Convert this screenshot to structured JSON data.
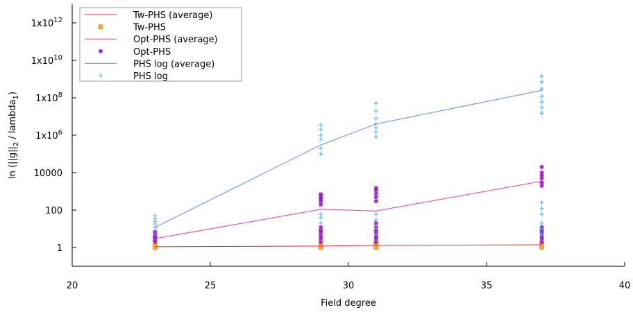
{
  "chart_data": {
    "type": "scatter",
    "xlabel": "Field degree",
    "ylabel": "ln (||g||",
    "ylabel_sub1": "2",
    "ylabel_mid": " / lambda",
    "ylabel_sub2": "1",
    "ylabel_end": ")",
    "xlim": [
      20,
      40
    ],
    "y_scale": "log",
    "ylim": [
      0.1,
      10000000000000
    ],
    "x_ticks": [
      20,
      25,
      30,
      35,
      40
    ],
    "y_ticks": [
      {
        "value": 1,
        "mantissa": "1",
        "exp": ""
      },
      {
        "value": 100,
        "mantissa": "100",
        "exp": ""
      },
      {
        "value": 10000,
        "mantissa": "10000",
        "exp": ""
      },
      {
        "value": 1000000,
        "mantissa": "1x10",
        "exp": "6"
      },
      {
        "value": 100000000,
        "mantissa": "1x10",
        "exp": "8"
      },
      {
        "value": 10000000000,
        "mantissa": "1x10",
        "exp": "10"
      },
      {
        "value": 1000000000000,
        "mantissa": "1x10",
        "exp": "12"
      }
    ],
    "grid": false,
    "legend_position": "top-left",
    "colors": {
      "tw": "#e8272b",
      "tw_points": "#f7a23e",
      "opt": "#ea3aa5",
      "opt_points": "#9b1fc4",
      "phs": "#5b8fe6",
      "phs_points": "#4aa8e0"
    },
    "legend": [
      {
        "label": "Tw-PHS (average)",
        "kind": "line",
        "color_key": "tw"
      },
      {
        "label": "Tw-PHS",
        "kind": "square",
        "color_key": "tw_points"
      },
      {
        "label": "Opt-PHS (average)",
        "kind": "line",
        "color_key": "opt"
      },
      {
        "label": "Opt-PHS",
        "kind": "star",
        "color_key": "opt_points"
      },
      {
        "label": "PHS log (average)",
        "kind": "line",
        "color_key": "phs"
      },
      {
        "label": "PHS log",
        "kind": "plus",
        "color_key": "phs_points"
      }
    ],
    "series": [
      {
        "name": "Tw-PHS (average)",
        "kind": "line",
        "color_key": "tw",
        "x": [
          23,
          29,
          31,
          37
        ],
        "y": [
          1.1,
          1.2,
          1.3,
          1.4
        ]
      },
      {
        "name": "Tw-PHS",
        "kind": "square",
        "color_key": "tw_points",
        "x": [
          23,
          23,
          23,
          29,
          29,
          29,
          31,
          31,
          31,
          37,
          37,
          37
        ],
        "y": [
          1.0,
          1.1,
          1.25,
          1.0,
          1.15,
          1.35,
          1.0,
          1.2,
          1.5,
          1.0,
          1.2,
          1.45
        ]
      },
      {
        "name": "Opt-PHS (average)",
        "kind": "line",
        "color_key": "opt",
        "x": [
          23,
          29,
          31,
          37
        ],
        "y": [
          3,
          110,
          90,
          3500
        ]
      },
      {
        "name": "Opt-PHS",
        "kind": "star",
        "color_key": "opt_points",
        "x": [
          23,
          23,
          23,
          23,
          23,
          23,
          23,
          23,
          29,
          29,
          29,
          29,
          29,
          29,
          29,
          29,
          29,
          29,
          29,
          29,
          31,
          31,
          31,
          31,
          31,
          31,
          31,
          31,
          31,
          31,
          31,
          31,
          37,
          37,
          37,
          37,
          37,
          37,
          37,
          37,
          37,
          37,
          37,
          37
        ],
        "y": [
          2,
          2.5,
          3,
          3.5,
          4,
          5,
          6,
          7,
          2,
          3,
          4,
          6,
          8,
          12,
          200,
          300,
          400,
          500,
          600,
          700,
          2,
          3,
          4,
          6,
          8,
          12,
          20,
          300,
          500,
          800,
          1200,
          1500,
          2,
          3,
          4,
          6,
          8,
          12,
          2000,
          3000,
          5000,
          7000,
          10000,
          20000
        ]
      },
      {
        "name": "PHS log (average)",
        "kind": "line",
        "color_key": "phs",
        "x": [
          23,
          29,
          31,
          37
        ],
        "y": [
          12,
          300000,
          4000000,
          250000000
        ]
      },
      {
        "name": "PHS log",
        "kind": "plus",
        "color_key": "phs_points",
        "x": [
          23,
          23,
          23,
          23,
          23,
          23,
          23,
          29,
          29,
          29,
          29,
          29,
          29,
          29,
          29,
          29,
          31,
          31,
          31,
          31,
          31,
          31,
          31,
          31,
          31,
          31,
          31,
          37,
          37,
          37,
          37,
          37,
          37,
          37,
          37,
          37,
          37,
          37,
          37,
          37
        ],
        "y": [
          5,
          8,
          12,
          18,
          25,
          35,
          50,
          20,
          40,
          60,
          100000,
          200000,
          600000,
          1000000,
          2000000,
          3500000,
          5,
          10,
          30,
          60,
          800000,
          1500000,
          2500000,
          4000000,
          8000000,
          20000000,
          50000000,
          5,
          10,
          20,
          60,
          120,
          250,
          15000000,
          30000000,
          60000000,
          120000000,
          300000000,
          700000000,
          1400000000
        ]
      }
    ]
  }
}
